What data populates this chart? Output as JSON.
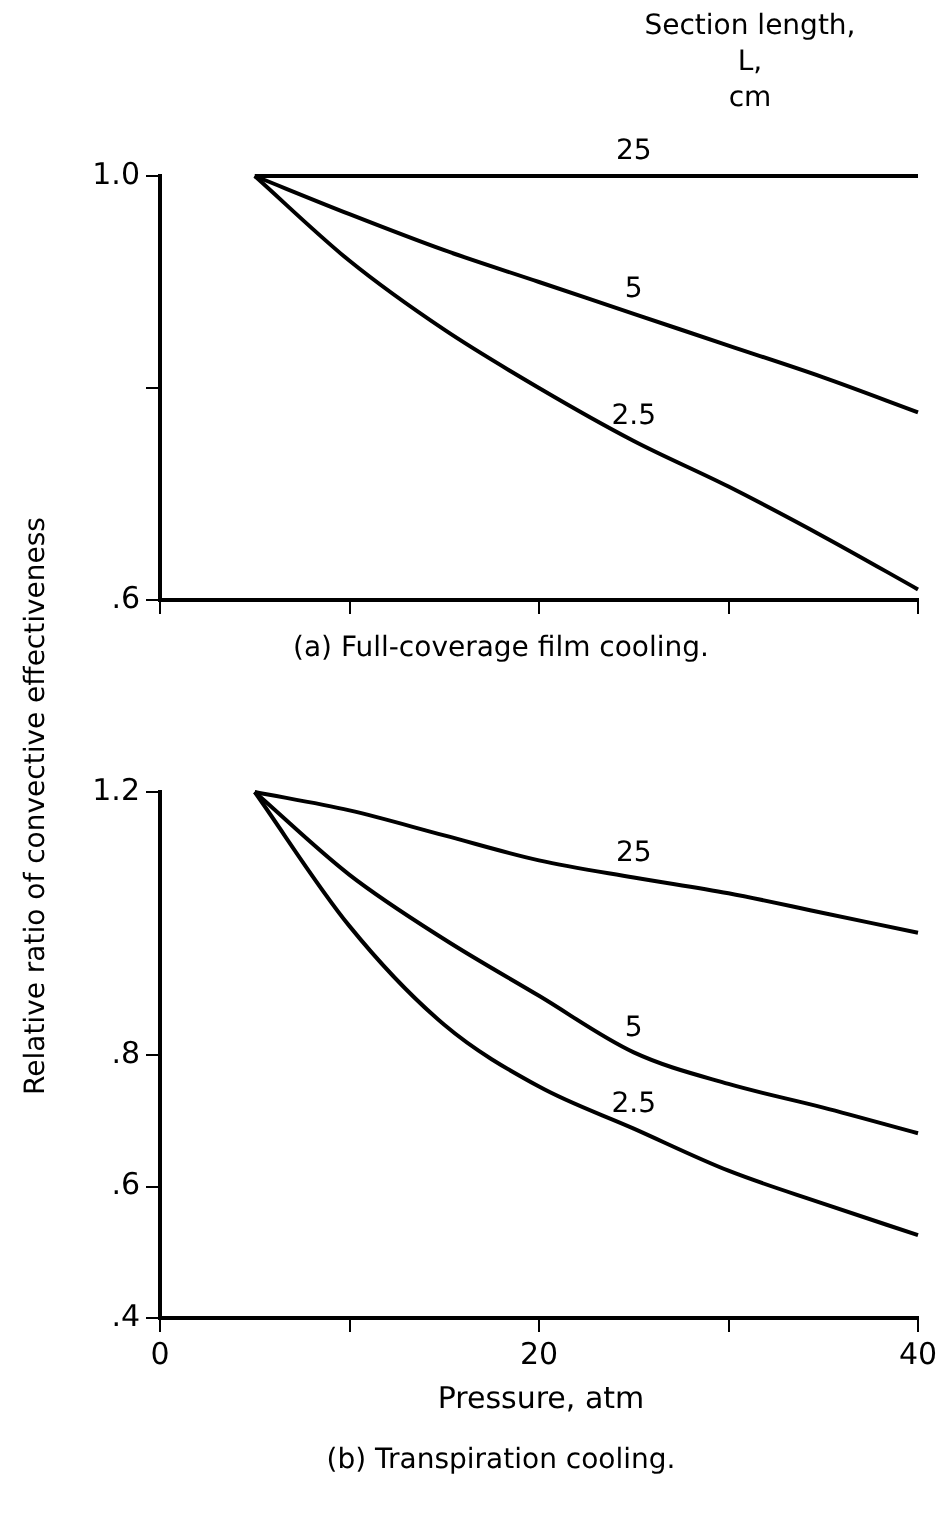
{
  "chart_data": [
    {
      "type": "line",
      "legend_title": "Section length,\nL,\ncm",
      "ylabel": "Relative ratio of convective effectiveness",
      "annotations": [
        "(a) Full-coverage film cooling."
      ],
      "x": [
        5,
        10,
        15,
        20,
        25,
        30,
        35,
        40
      ],
      "xlim": [
        0,
        40
      ],
      "xticks": [
        {
          "value": 0,
          "label": null
        },
        {
          "value": 10,
          "label": null
        },
        {
          "value": 20,
          "label": null
        },
        {
          "value": 30,
          "label": null
        },
        {
          "value": 40,
          "label": null
        }
      ],
      "ylim": [
        0.6,
        1.0
      ],
      "yticks": [
        {
          "value": 0.6,
          "label": ".6"
        },
        {
          "value": 0.8,
          "label": null
        },
        {
          "value": 1.0,
          "label": "1.0"
        }
      ],
      "tick_labels": "y",
      "grid": false,
      "legend": false,
      "marker": "none",
      "line_style": "solid",
      "series": [
        {
          "name": "25",
          "color": "#000000",
          "values": [
            1.0,
            1.0,
            1.0,
            1.0,
            1.0,
            1.0,
            1.0,
            1.0
          ]
        },
        {
          "name": "5",
          "color": "#000000",
          "values": [
            1.0,
            0.964,
            0.93,
            0.9,
            0.87,
            0.84,
            0.81,
            0.777
          ]
        },
        {
          "name": "2.5",
          "color": "#000000",
          "values": [
            1.0,
            0.92,
            0.855,
            0.8,
            0.75,
            0.707,
            0.66,
            0.61
          ]
        }
      ]
    },
    {
      "type": "line",
      "xlabel": "Pressure, atm",
      "annotations": [
        "(b) Transpiration cooling."
      ],
      "x": [
        5,
        10,
        15,
        20,
        25,
        30,
        35,
        40
      ],
      "xlim": [
        0,
        40
      ],
      "xticks": [
        0,
        {
          "value": 10,
          "label": null
        },
        20,
        {
          "value": 30,
          "label": null
        },
        40
      ],
      "ylim": [
        0.4,
        1.2
      ],
      "yticks": [
        {
          "value": 0.4,
          "label": ".4"
        },
        {
          "value": 0.6,
          "label": ".6"
        },
        {
          "value": 0.8,
          "label": ".8"
        },
        {
          "value": 1.2,
          "label": "1.2"
        }
      ],
      "grid": false,
      "legend": false,
      "marker": "none",
      "line_style": "solid",
      "series": [
        {
          "name": "25",
          "color": "#000000",
          "values": [
            1.2,
            1.172,
            1.134,
            1.096,
            1.07,
            1.046,
            1.016,
            0.986
          ]
        },
        {
          "name": "5",
          "color": "#000000",
          "values": [
            1.2,
            1.074,
            0.976,
            0.89,
            0.804,
            0.756,
            0.72,
            0.681
          ]
        },
        {
          "name": "2.5",
          "color": "#000000",
          "values": [
            1.2,
            0.996,
            0.846,
            0.752,
            0.688,
            0.624,
            0.574,
            0.526
          ]
        }
      ]
    }
  ]
}
